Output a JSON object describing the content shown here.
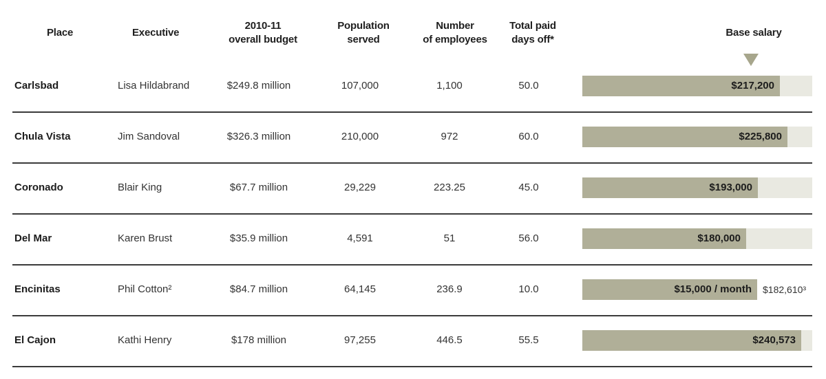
{
  "headers": {
    "place": "Place",
    "executive": "Executive",
    "budget_line1": "2010-11",
    "budget_line2": "overall budget",
    "population_line1": "Population",
    "population_line2": "served",
    "employees_line1": "Number",
    "employees_line2": "of employees",
    "days_line1": "Total paid",
    "days_line2": "days off*",
    "salary": "Base salary"
  },
  "colors": {
    "bar_fill": "#b0af98",
    "bar_track": "#e9e9e1",
    "marker": "#a7a68c"
  },
  "bar_scale_max": 253000,
  "rows": [
    {
      "place": "Carlsbad",
      "executive": "Lisa Hildabrand",
      "budget": "$249.8 million",
      "population": "107,000",
      "employees": "1,100",
      "days_off": "50.0",
      "salary_label": "$217,200",
      "salary_value": 217200,
      "extra": ""
    },
    {
      "place": "Chula Vista",
      "executive": "Jim Sandoval",
      "budget": "$326.3 million",
      "population": "210,000",
      "employees": "972",
      "days_off": "60.0",
      "salary_label": "$225,800",
      "salary_value": 225800,
      "extra": ""
    },
    {
      "place": "Coronado",
      "executive": "Blair King",
      "budget": "$67.7 million",
      "population": "29,229",
      "employees": "223.25",
      "days_off": "45.0",
      "salary_label": "$193,000",
      "salary_value": 193000,
      "extra": ""
    },
    {
      "place": "Del Mar",
      "executive": "Karen Brust",
      "budget": "$35.9 million",
      "population": "4,591",
      "employees": "51",
      "days_off": "56.0",
      "salary_label": "$180,000",
      "salary_value": 180000,
      "extra": ""
    },
    {
      "place": "Encinitas",
      "executive": "Phil Cotton²",
      "budget": "$84.7 million",
      "population": "64,145",
      "employees": "236.9",
      "days_off": "10.0",
      "salary_label": "$15,000 / month",
      "salary_value": 182610,
      "extra": "$182,610³"
    },
    {
      "place": "El Cajon",
      "executive": "Kathi Henry",
      "budget": "$178 million",
      "population": "97,255",
      "employees": "446.5",
      "days_off": "55.5",
      "salary_label": "$240,573",
      "salary_value": 240573,
      "extra": ""
    }
  ]
}
